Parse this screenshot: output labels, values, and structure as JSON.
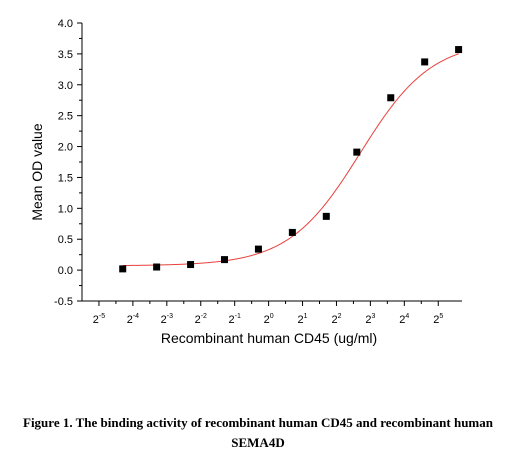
{
  "caption": "Figure 1. The binding activity of recombinant human CD45 and recombinant human SEMA4D",
  "chart_data": {
    "type": "scatter",
    "title": "",
    "xlabel": "Recombinant human CD45 (ug/ml)",
    "ylabel": "Mean OD value",
    "x_scale": "log2",
    "xlim": [
      -5.5,
      5.7
    ],
    "ylim": [
      -0.5,
      4.0
    ],
    "x_ticks": [
      -5,
      -4,
      -3,
      -2,
      -1,
      0,
      1,
      2,
      3,
      4,
      5
    ],
    "x_tick_labels": [
      {
        "base": "2",
        "exp": "-5"
      },
      {
        "base": "2",
        "exp": "-4"
      },
      {
        "base": "2",
        "exp": "-3"
      },
      {
        "base": "2",
        "exp": "-2"
      },
      {
        "base": "2",
        "exp": "-1"
      },
      {
        "base": "2",
        "exp": "0"
      },
      {
        "base": "2",
        "exp": "1"
      },
      {
        "base": "2",
        "exp": "2"
      },
      {
        "base": "2",
        "exp": "3"
      },
      {
        "base": "2",
        "exp": "4"
      },
      {
        "base": "2",
        "exp": "5"
      }
    ],
    "y_ticks": [
      -0.5,
      0.0,
      0.5,
      1.0,
      1.5,
      2.0,
      2.5,
      3.0,
      3.5,
      4.0
    ],
    "y_tick_labels": [
      "-0.5",
      "0.0",
      "0.5",
      "1.0",
      "1.5",
      "2.0",
      "2.5",
      "3.0",
      "3.5",
      "4.0"
    ],
    "series": [
      {
        "marker": "square",
        "color": "#000000",
        "x": [
          -4.3,
          -3.3,
          -2.3,
          -1.3,
          -0.3,
          0.7,
          1.7,
          2.6,
          3.6,
          4.6,
          5.6
        ],
        "y": [
          0.02,
          0.05,
          0.09,
          0.17,
          0.34,
          0.61,
          0.87,
          1.91,
          2.79,
          3.37,
          3.57
        ]
      }
    ],
    "fit_curve": {
      "color": "#e8413c",
      "model": "4PL",
      "bottom": 0.07,
      "top": 3.72,
      "midpoint": 2.7,
      "slope": 0.95
    },
    "grid": false,
    "legend": "none"
  }
}
